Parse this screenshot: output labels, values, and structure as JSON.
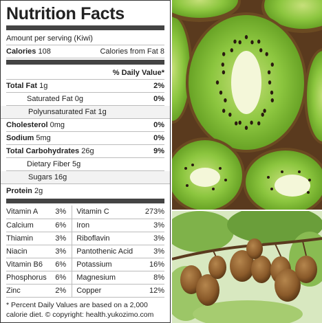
{
  "label": {
    "title": "Nutrition Facts",
    "serving": "Amount per serving (Kiwi)",
    "calories_label": "Calories",
    "calories_value": "108",
    "calories_from_fat": "Calories from Fat 8",
    "dv_header": "% Daily Value*",
    "nutrients": [
      {
        "name": "Total Fat",
        "amount": "1g",
        "dv": "2%",
        "bold": true,
        "indent": 0
      },
      {
        "name": "Saturated Fat",
        "amount": "0g",
        "dv": "0%",
        "bold": false,
        "indent": 1
      },
      {
        "name": "Polyunsaturated Fat",
        "amount": "1g",
        "dv": "",
        "bold": false,
        "indent": 2
      },
      {
        "name": "Cholesterol",
        "amount": "0mg",
        "dv": "0%",
        "bold": true,
        "indent": 0
      },
      {
        "name": "Sodium",
        "amount": "5mg",
        "dv": "0%",
        "bold": true,
        "indent": 0
      },
      {
        "name": "Total Carbohydrates",
        "amount": "26g",
        "dv": "9%",
        "bold": true,
        "indent": 0
      },
      {
        "name": "Dietary Fiber",
        "amount": "5g",
        "dv": "",
        "bold": false,
        "indent": 1
      },
      {
        "name": "Sugars",
        "amount": "16g",
        "dv": "",
        "bold": false,
        "indent": 2
      },
      {
        "name": "Protein",
        "amount": "2g",
        "dv": "",
        "bold": true,
        "indent": 0
      }
    ],
    "vitamins": [
      [
        {
          "name": "Vitamin A",
          "dv": "3%"
        },
        {
          "name": "Vitamin C",
          "dv": "273%"
        }
      ],
      [
        {
          "name": "Calcium",
          "dv": "6%"
        },
        {
          "name": "Iron",
          "dv": "3%"
        }
      ],
      [
        {
          "name": "Thiamin",
          "dv": "3%"
        },
        {
          "name": "Riboflavin",
          "dv": "3%"
        }
      ],
      [
        {
          "name": "Niacin",
          "dv": "3%"
        },
        {
          "name": "Pantothenic Acid",
          "dv": "3%"
        }
      ],
      [
        {
          "name": "Vitamin B6",
          "dv": "6%"
        },
        {
          "name": "Potassium",
          "dv": "16%"
        }
      ],
      [
        {
          "name": "Phosphorus",
          "dv": "6%"
        },
        {
          "name": "Magnesium",
          "dv": "8%"
        }
      ],
      [
        {
          "name": "Zinc",
          "dv": "2%"
        },
        {
          "name": "Copper",
          "dv": "12%"
        }
      ]
    ],
    "footnote": "* Percent Daily Values are based on a 2,000 calorie diet. © copyright: health.yukozimo.com"
  },
  "colors": {
    "kiwi_flesh": "#8cc63f",
    "kiwi_core": "#f4f7d9",
    "kiwi_skin": "#6b4a22",
    "seed": "#2a1a10"
  }
}
